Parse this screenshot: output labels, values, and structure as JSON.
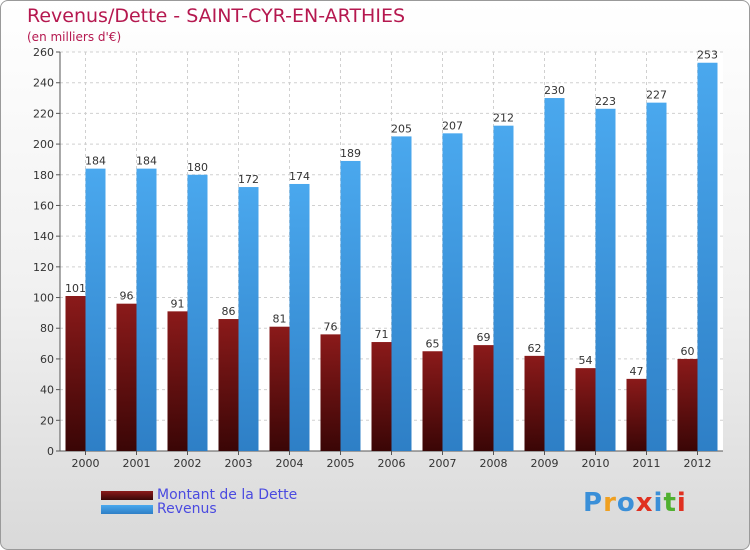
{
  "header": {
    "title": "Revenus/Dette - SAINT-CYR-EN-ARTHIES",
    "subtitle": "(en milliers d'€)"
  },
  "legend": {
    "debt_label": "Montant de la Dette",
    "revenue_label": "Revenus"
  },
  "logo": {
    "letters": [
      "P",
      "r",
      "o",
      "x",
      "i",
      "t",
      "i"
    ],
    "colors": [
      "#3a8fd8",
      "#f0a020",
      "#3a8fd8",
      "#e03020",
      "#3a8fd8",
      "#50b030",
      "#e03020"
    ]
  },
  "colors": {
    "debt_top": "#8b1a1a",
    "debt_bottom": "#3a0606",
    "revenue_top": "#4aa8ee",
    "revenue_bottom": "#2e7fc6"
  },
  "chart_data": {
    "type": "bar",
    "title": "Revenus/Dette - SAINT-CYR-EN-ARTHIES",
    "subtitle": "(en milliers d'€)",
    "categories": [
      "2000",
      "2001",
      "2002",
      "2003",
      "2004",
      "2005",
      "2006",
      "2007",
      "2008",
      "2009",
      "2010",
      "2011",
      "2012"
    ],
    "series": [
      {
        "name": "Montant de la Dette",
        "values": [
          101,
          96,
          91,
          86,
          81,
          76,
          71,
          65,
          69,
          62,
          54,
          47,
          60
        ]
      },
      {
        "name": "Revenus",
        "values": [
          184,
          184,
          180,
          172,
          174,
          189,
          205,
          207,
          212,
          230,
          223,
          227,
          253
        ]
      }
    ],
    "ylim": [
      0,
      260
    ],
    "yticks": [
      0,
      20,
      40,
      60,
      80,
      100,
      120,
      140,
      160,
      180,
      200,
      220,
      240,
      260
    ],
    "grid": true,
    "legend_position": "bottom-left"
  }
}
